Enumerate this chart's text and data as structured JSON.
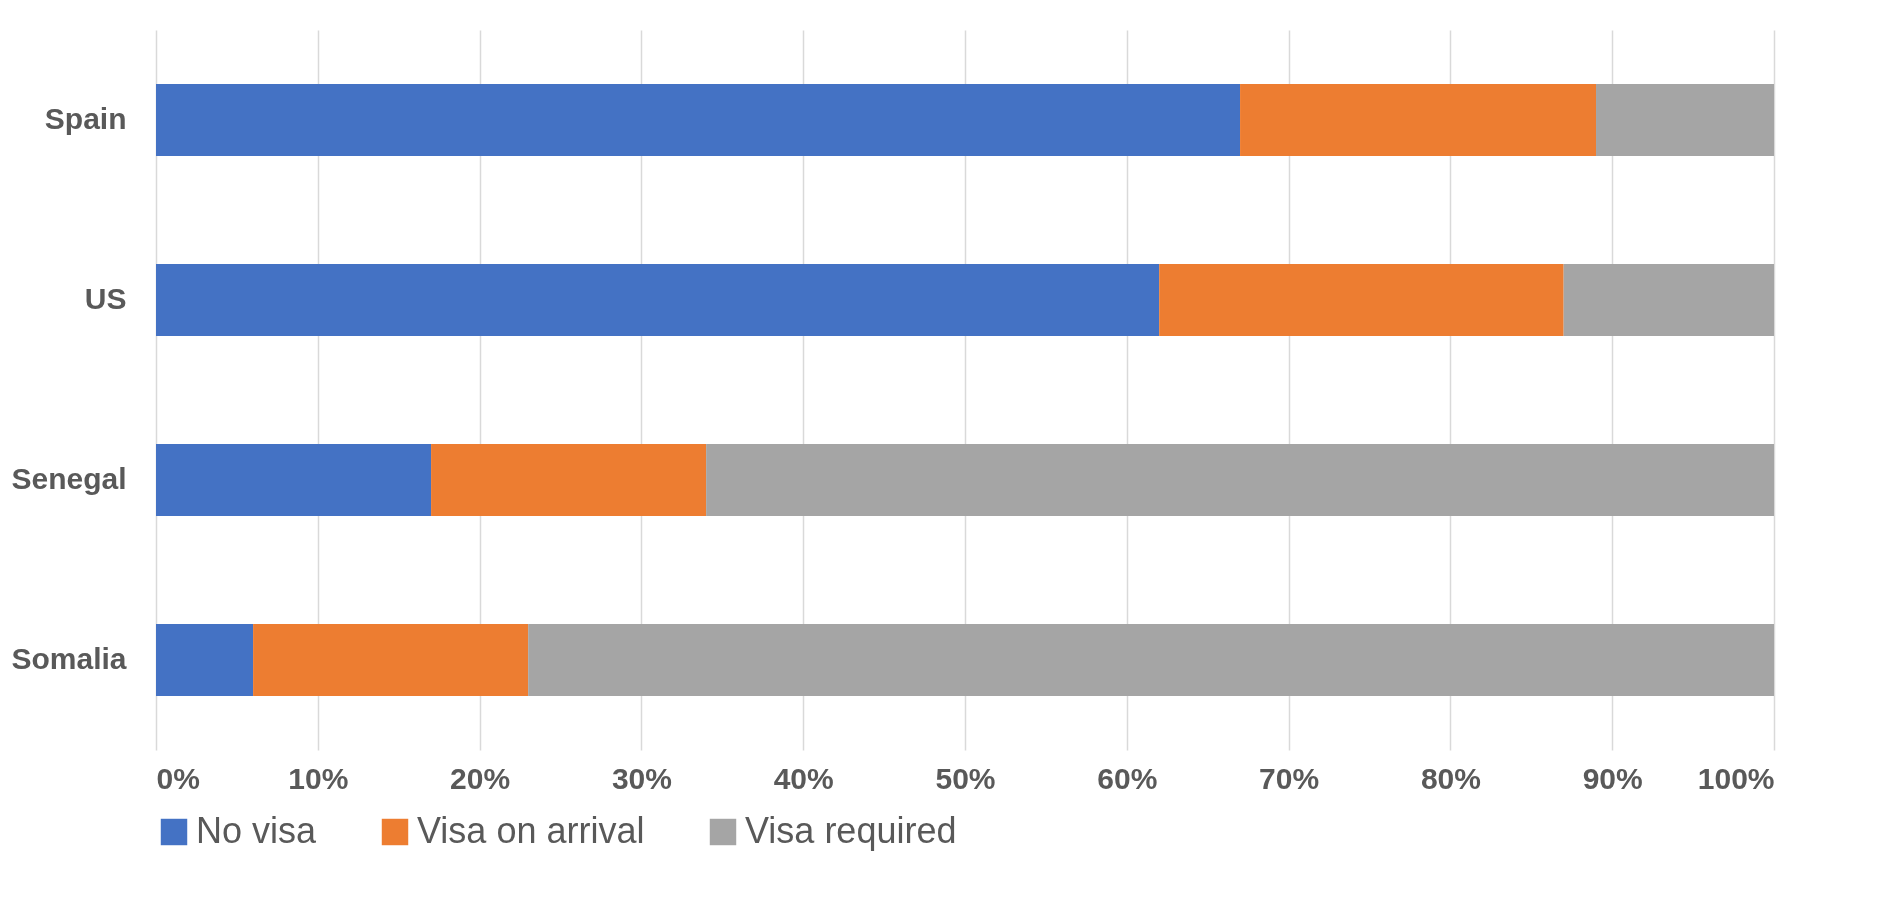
{
  "chart_data": {
    "type": "bar",
    "orientation": "horizontal",
    "stacked": true,
    "categories": [
      "Spain",
      "US",
      "Senegal",
      "Somalia"
    ],
    "series": [
      {
        "name": "No visa",
        "color": "#4472c4",
        "values": [
          67,
          62,
          17,
          6
        ]
      },
      {
        "name": "Visa on arrival",
        "color": "#ed7d31",
        "values": [
          22,
          25,
          17,
          17
        ]
      },
      {
        "name": "Visa required",
        "color": "#a5a5a5",
        "values": [
          11,
          13,
          66,
          77
        ]
      }
    ],
    "xlim": [
      0,
      100
    ],
    "xticks": [
      {
        "value": 0,
        "label": "0%"
      },
      {
        "value": 10,
        "label": "10%"
      },
      {
        "value": 20,
        "label": "20%"
      },
      {
        "value": 30,
        "label": "30%"
      },
      {
        "value": 40,
        "label": "40%"
      },
      {
        "value": 50,
        "label": "50%"
      },
      {
        "value": 60,
        "label": "60%"
      },
      {
        "value": 70,
        "label": "70%"
      },
      {
        "value": 80,
        "label": "80%"
      },
      {
        "value": 90,
        "label": "90%"
      },
      {
        "value": 100,
        "label": "100%"
      }
    ],
    "grid": "x",
    "legend": "bottom"
  }
}
